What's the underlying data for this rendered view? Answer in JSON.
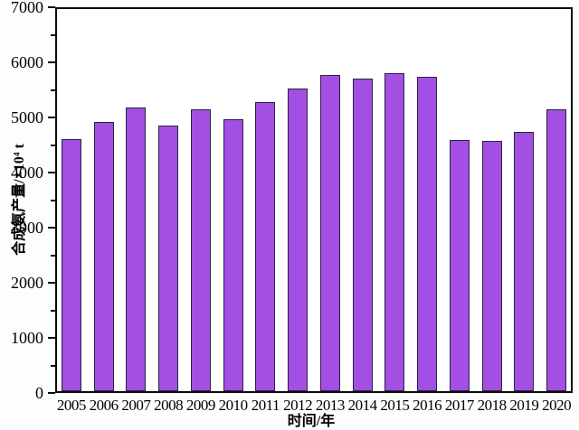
{
  "chart_data": {
    "type": "bar",
    "title": "",
    "xlabel": "时间/年",
    "ylabel": "合成氨产量/×10⁴ t",
    "categories": [
      "2005",
      "2006",
      "2007",
      "2008",
      "2009",
      "2010",
      "2011",
      "2012",
      "2013",
      "2014",
      "2015",
      "2016",
      "2017",
      "2018",
      "2019",
      "2020"
    ],
    "values": [
      4600,
      4910,
      5180,
      4860,
      5140,
      4970,
      5285,
      5520,
      5770,
      5705,
      5805,
      5740,
      4595,
      4580,
      4735,
      5150
    ],
    "ylim": [
      0,
      7000
    ],
    "ytick_interval": 1000,
    "yminor_tick_interval": 500,
    "ytick_labels": [
      "0",
      "1000",
      "2000",
      "3000",
      "4000",
      "5000",
      "6000",
      "7000"
    ],
    "grid": "off",
    "legend": "none",
    "bar_color": "#a34fe4",
    "bar_border_color": "#26243f",
    "axis_color": "#0a0a0a",
    "plot_background": "#ffffff"
  }
}
